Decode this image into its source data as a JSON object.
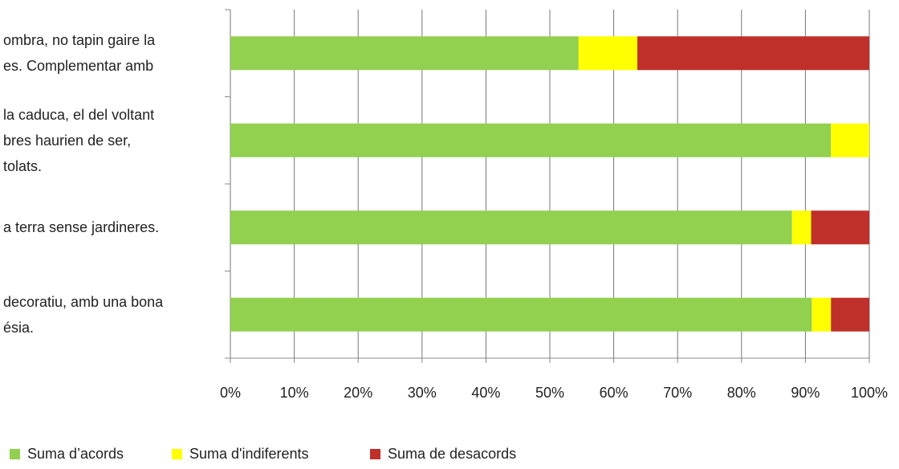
{
  "chart_data": {
    "type": "stacked_barh",
    "categories": [
      "ombra, no tapin gaire la\nes. Complementar amb",
      "la caduca, el del voltant\nbres haurien de ser,\ntolats.",
      "a terra sense jardineres.",
      "decoratiu, amb una bona\nésia."
    ],
    "series": [
      {
        "name": "Suma d’acords",
        "color": "#92d050",
        "values": [
          54.5,
          94.0,
          87.9,
          91.0
        ]
      },
      {
        "name": "Suma d'indiferents",
        "color": "#ffff00",
        "values": [
          9.2,
          6.0,
          3.0,
          3.0
        ]
      },
      {
        "name": "Suma de desacords",
        "color": "#c0302a",
        "values": [
          36.3,
          0,
          9.1,
          6.0
        ]
      }
    ],
    "xlim": [
      0,
      100
    ],
    "xticks": [
      {
        "value": 0,
        "label": "0%"
      },
      {
        "value": 10,
        "label": "10%"
      },
      {
        "value": 20,
        "label": "20%"
      },
      {
        "value": 30,
        "label": "30%"
      },
      {
        "value": 40,
        "label": "40%"
      },
      {
        "value": 50,
        "label": "50%"
      },
      {
        "value": 60,
        "label": "60%"
      },
      {
        "value": 70,
        "label": "70%"
      },
      {
        "value": 80,
        "label": "80%"
      },
      {
        "value": 90,
        "label": "90%"
      },
      {
        "value": 100,
        "label": "100%"
      }
    ],
    "grid": true,
    "legend": "bottom"
  }
}
